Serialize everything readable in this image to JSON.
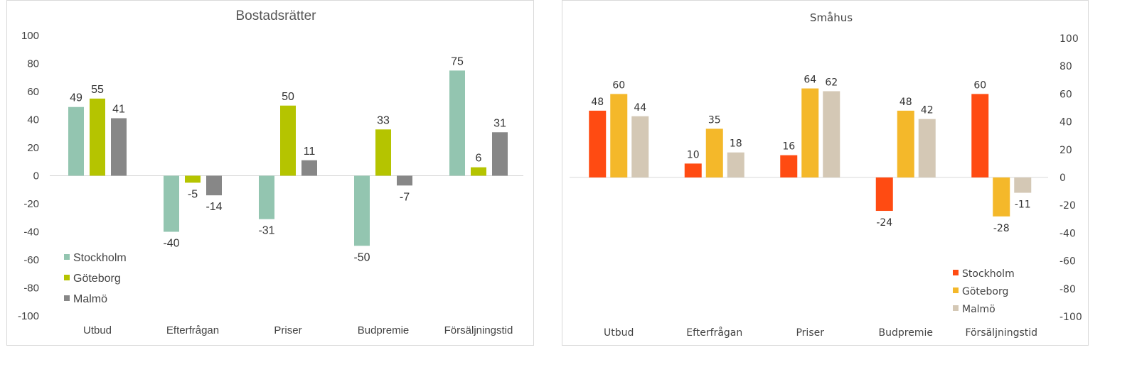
{
  "chart_data": [
    {
      "type": "bar",
      "title": "Bostadsrätter",
      "categories": [
        "Utbud",
        "Efterfrågan",
        "Priser",
        "Budpremie",
        "Försäljningstid"
      ],
      "series": [
        {
          "name": "Stockholm",
          "values": [
            49,
            -40,
            -31,
            -50,
            75
          ],
          "color": "#93c5b0"
        },
        {
          "name": "Göteborg",
          "values": [
            55,
            -5,
            50,
            33,
            6
          ],
          "color": "#b5c400"
        },
        {
          "name": "Malmö",
          "values": [
            41,
            -14,
            11,
            -7,
            31
          ],
          "color": "#878787"
        }
      ],
      "ylim": [
        -100,
        100
      ],
      "yticks": [
        100,
        80,
        60,
        40,
        20,
        0,
        -20,
        -40,
        -60,
        -80,
        -100
      ],
      "yaxis_side": "left",
      "grid": false,
      "legend_position": "bottom-left",
      "data_labels": true
    },
    {
      "type": "bar",
      "title": "Småhus",
      "categories": [
        "Utbud",
        "Efterfrågan",
        "Priser",
        "Budpremie",
        "Försäljningstid"
      ],
      "series": [
        {
          "name": "Stockholm",
          "values": [
            48,
            10,
            16,
            -24,
            60
          ],
          "color": "#ff4b12"
        },
        {
          "name": "Göteborg",
          "values": [
            60,
            35,
            64,
            48,
            -28
          ],
          "color": "#f4b82a"
        },
        {
          "name": "Malmö",
          "values": [
            44,
            18,
            62,
            42,
            -11
          ],
          "color": "#d4c8b5"
        }
      ],
      "ylim": [
        -100,
        100
      ],
      "yticks": [
        100,
        80,
        60,
        40,
        20,
        0,
        -20,
        -40,
        -60,
        -80,
        -100
      ],
      "yaxis_side": "right",
      "grid": false,
      "legend_position": "bottom-right",
      "data_labels": true
    }
  ]
}
